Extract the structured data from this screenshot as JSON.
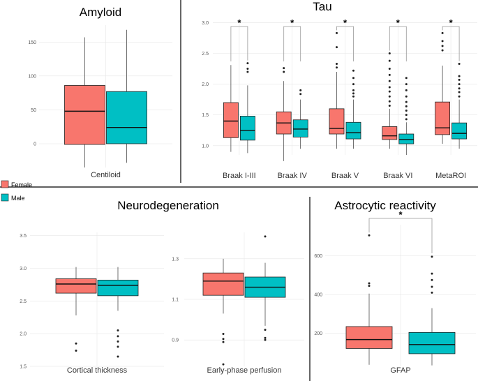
{
  "colors": {
    "female": "#F8766D",
    "male": "#00BFC4"
  },
  "legend": [
    {
      "label": "Female",
      "color": "#F8766D"
    },
    {
      "label": "Male",
      "color": "#00BFC4"
    }
  ],
  "chart_data": [
    {
      "id": "amyloid",
      "type": "boxplot",
      "title": "Amyloid",
      "categories": [
        "Centiloid"
      ],
      "ylim": [
        -35,
        175
      ],
      "yticks": [
        0,
        50,
        100,
        150
      ],
      "series": [
        {
          "name": "Female",
          "boxes": [
            {
              "min": -35,
              "q1": -1,
              "median": 48,
              "q3": 86,
              "max": 157,
              "outliers": []
            }
          ]
        },
        {
          "name": "Male",
          "boxes": [
            {
              "min": -28,
              "q1": 0,
              "median": 24,
              "q3": 77,
              "max": 168,
              "outliers": []
            }
          ]
        }
      ],
      "significance": []
    },
    {
      "id": "tau",
      "type": "boxplot",
      "title": "Tau",
      "categories": [
        "Braak I-III",
        "Braak IV",
        "Braak V",
        "Braak VI",
        "MetaROI"
      ],
      "ylim": [
        0.85,
        3.05
      ],
      "yticks": [
        1.0,
        1.5,
        2.0,
        2.5,
        3.0
      ],
      "ytick_labels": [
        "1.0",
        "1.5",
        "2.0",
        "2.5",
        "3.0"
      ],
      "series": [
        {
          "name": "Female",
          "boxes": [
            {
              "min": 0.9,
              "q1": 1.13,
              "median": 1.4,
              "q3": 1.7,
              "max": 2.31,
              "outliers": []
            },
            {
              "min": 0.75,
              "q1": 1.19,
              "median": 1.37,
              "q3": 1.55,
              "max": 2.05,
              "outliers": [
                2.2,
                2.26
              ]
            },
            {
              "min": 0.95,
              "q1": 1.19,
              "median": 1.28,
              "q3": 1.6,
              "max": 2.2,
              "outliers": [
                2.27,
                2.33,
                2.6,
                2.83
              ]
            },
            {
              "min": 0.95,
              "q1": 1.1,
              "median": 1.16,
              "q3": 1.31,
              "max": 1.6,
              "outliers": [
                1.65,
                1.72,
                1.8,
                1.88,
                1.95,
                2.05,
                2.15,
                2.25,
                2.38,
                2.5
              ]
            },
            {
              "min": 1.03,
              "q1": 1.18,
              "median": 1.29,
              "q3": 1.71,
              "max": 2.3,
              "outliers": [
                2.55,
                2.62,
                2.7,
                2.83
              ]
            }
          ]
        },
        {
          "name": "Male",
          "boxes": [
            {
              "min": 0.88,
              "q1": 1.09,
              "median": 1.25,
              "q3": 1.48,
              "max": 1.98,
              "outliers": [
                2.2,
                2.25,
                2.34
              ]
            },
            {
              "min": 0.95,
              "q1": 1.14,
              "median": 1.27,
              "q3": 1.42,
              "max": 1.75,
              "outliers": [
                1.84,
                1.9
              ]
            },
            {
              "min": 0.95,
              "q1": 1.11,
              "median": 1.21,
              "q3": 1.38,
              "max": 1.75,
              "outliers": [
                1.8,
                1.85,
                1.9,
                2.0,
                2.1,
                2.22
              ]
            },
            {
              "min": 0.85,
              "q1": 1.03,
              "median": 1.1,
              "q3": 1.19,
              "max": 1.38,
              "outliers": [
                1.43,
                1.5,
                1.57,
                1.64,
                1.71,
                1.8,
                1.9,
                2.0,
                2.1
              ]
            },
            {
              "min": 0.95,
              "q1": 1.11,
              "median": 1.2,
              "q3": 1.37,
              "max": 1.75,
              "outliers": [
                1.8,
                1.87,
                1.93,
                2.0,
                2.07,
                2.13,
                2.33
              ]
            }
          ]
        }
      ],
      "significance": [
        {
          "category": "Braak I-III",
          "label": "*"
        },
        {
          "category": "Braak IV",
          "label": "*"
        },
        {
          "category": "Braak V",
          "label": "*"
        },
        {
          "category": "Braak VI",
          "label": "*"
        },
        {
          "category": "MetaROI",
          "label": "*"
        }
      ]
    },
    {
      "id": "neuro_left",
      "type": "boxplot",
      "title": "Neurodegeneration",
      "categories": [
        "Cortical thickness"
      ],
      "ylim": [
        1.5,
        3.55
      ],
      "yticks": [
        1.5,
        2.0,
        2.5,
        3.0,
        3.5
      ],
      "ytick_labels": [
        "1.5",
        "2.0",
        "2.5",
        "3.0",
        "3.5"
      ],
      "series": [
        {
          "name": "Female",
          "boxes": [
            {
              "min": 2.28,
              "q1": 2.62,
              "median": 2.76,
              "q3": 2.84,
              "max": 3.02,
              "outliers": [
                1.74,
                1.85
              ]
            }
          ]
        },
        {
          "name": "Male",
          "boxes": [
            {
              "min": 2.35,
              "q1": 2.58,
              "median": 2.74,
              "q3": 2.82,
              "max": 3.02,
              "outliers": [
                1.65,
                1.8,
                1.88,
                1.96,
                2.05
              ]
            }
          ]
        }
      ],
      "significance": []
    },
    {
      "id": "neuro_right",
      "type": "boxplot",
      "title": "",
      "categories": [
        "Early-phase perfusion"
      ],
      "ylim": [
        0.77,
        1.43
      ],
      "yticks": [
        0.9,
        1.1,
        1.3
      ],
      "ytick_labels": [
        "0.9",
        "1.1",
        "1.3"
      ],
      "series": [
        {
          "name": "Female",
          "boxes": [
            {
              "min": 1.03,
              "q1": 1.12,
              "median": 1.19,
              "q3": 1.23,
              "max": 1.3,
              "outliers": [
                0.78,
                0.89,
                0.905,
                0.93
              ]
            }
          ]
        },
        {
          "name": "Male",
          "boxes": [
            {
              "min": 0.97,
              "q1": 1.11,
              "median": 1.16,
              "q3": 1.21,
              "max": 1.28,
              "outliers": [
                0.9,
                0.91,
                0.95,
                1.41
              ]
            }
          ]
        }
      ],
      "significance": []
    },
    {
      "id": "astro",
      "type": "boxplot",
      "title": "Astrocytic reactivity",
      "categories": [
        "GFAP"
      ],
      "ylim": [
        30,
        760
      ],
      "yticks": [
        200,
        400,
        600
      ],
      "series": [
        {
          "name": "Female",
          "boxes": [
            {
              "min": 38,
              "q1": 122,
              "median": 168,
              "q3": 235,
              "max": 405,
              "outliers": [
                445,
                458,
                705
              ]
            }
          ]
        },
        {
          "name": "Male",
          "boxes": [
            {
              "min": 35,
              "q1": 95,
              "median": 142,
              "q3": 205,
              "max": 330,
              "outliers": [
                410,
                440,
                475,
                508,
                595
              ]
            }
          ]
        }
      ],
      "significance": [
        {
          "category": "GFAP",
          "label": "*"
        }
      ]
    }
  ]
}
